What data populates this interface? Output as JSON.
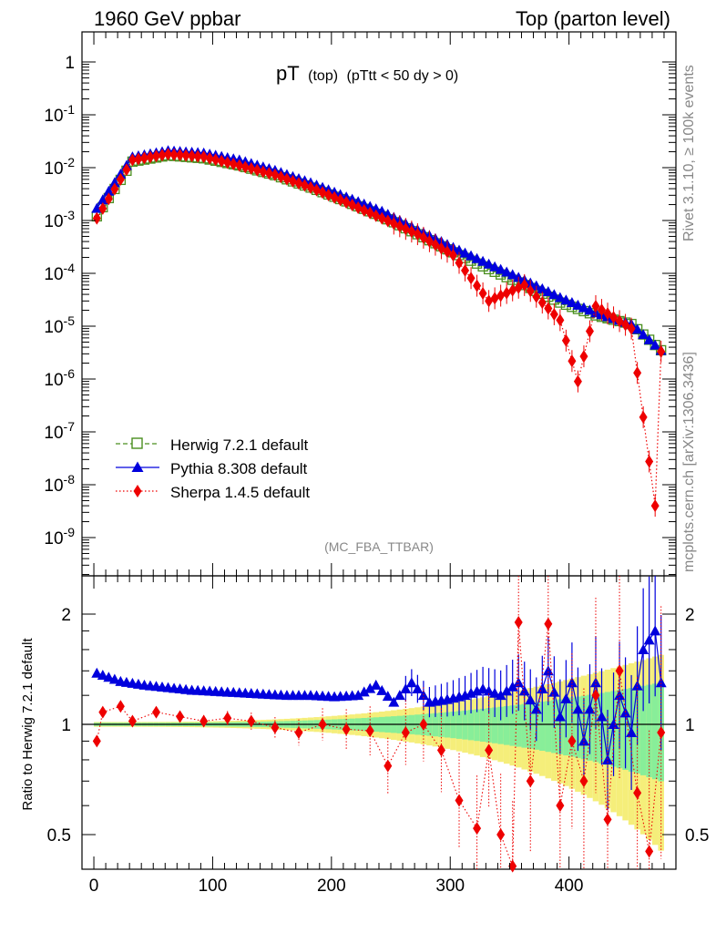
{
  "header": {
    "left": "1960 GeV ppbar",
    "right": "Top (parton level)"
  },
  "title": {
    "main": "pT",
    "sub1": "(top)",
    "sub2": "(pTtt < 50 dy > 0)"
  },
  "side_right_top": "Rivet 3.1.10, ≥ 100k events",
  "side_right_bottom": "mcplots.cern.ch [arXiv:1306.3436]",
  "analysis_label": "(MC_FBA_TTBAR)",
  "ratio_ylabel": "Ratio to Herwig 7.2.1 default",
  "colors": {
    "herwig": "#4a8f1f",
    "pythia": "#0000dd",
    "sherpa": "#ee0000",
    "band_inner": "#88ee99",
    "band_outer": "#f5ee7a"
  },
  "chart_data": [
    {
      "type": "line",
      "title": "pT (top) (pTtt < 50 dy > 0)",
      "xlabel": "",
      "ylabel": "",
      "yscale": "log",
      "xlim": [
        -10,
        490
      ],
      "ylim": [
        3e-10,
        3
      ],
      "y_tick_labels": [
        "1",
        "10^-1",
        "10^-2",
        "10^-3",
        "10^-4",
        "10^-5",
        "10^-6",
        "10^-7",
        "10^-8",
        "10^-9"
      ],
      "x_tick_labels": [
        "0",
        "100",
        "200",
        "300",
        "400"
      ],
      "legend": [
        "Herwig 7.2.1 default",
        "Pythia 8.308 default",
        "Sherpa 1.4.5 default"
      ],
      "legend_position": "bottom-left",
      "series": [
        {
          "name": "Herwig 7.2.1 default",
          "marker": "open-square",
          "line": "dashed",
          "x": [
            2.5,
            32.5,
            62.5,
            92.5,
            122.5,
            152.5,
            182.5,
            212.5,
            242.5,
            272.5,
            302.5,
            332.5,
            362.5,
            392.5,
            422.5,
            452.5,
            477.5
          ],
          "y": [
            0.0012,
            0.013,
            0.017,
            0.015,
            0.011,
            0.0072,
            0.0042,
            0.0023,
            0.0012,
            0.00055,
            0.00025,
            0.00012,
            6e-05,
            2.8e-05,
            1.6e-05,
            1.1e-05,
            3.5e-06
          ]
        },
        {
          "name": "Pythia 8.308 default",
          "marker": "filled-triangle",
          "line": "solid",
          "x": [
            2.5,
            32.5,
            62.5,
            92.5,
            122.5,
            152.5,
            182.5,
            212.5,
            242.5,
            272.5,
            302.5,
            332.5,
            362.5,
            392.5,
            422.5,
            452.5,
            477.5
          ],
          "y": [
            0.0017,
            0.016,
            0.021,
            0.019,
            0.014,
            0.0089,
            0.0052,
            0.0028,
            0.0015,
            0.00067,
            0.00031,
            0.00015,
            7.5e-05,
            3.5e-05,
            1.8e-05,
            1.1e-05,
            3.5e-06
          ]
        },
        {
          "name": "Sherpa 1.4.5 default",
          "marker": "filled-diamond",
          "line": "dotted",
          "x": [
            2.5,
            32.5,
            62.5,
            92.5,
            122.5,
            152.5,
            182.5,
            212.5,
            242.5,
            272.5,
            302.5,
            332.5,
            362.5,
            392.5,
            407.5,
            422.5,
            452.5,
            472.5,
            477.5
          ],
          "y": [
            0.0011,
            0.014,
            0.018,
            0.016,
            0.011,
            0.0073,
            0.0042,
            0.0022,
            0.0011,
            0.00055,
            0.00022,
            3e-05,
            6e-05,
            1.3e-05,
            9e-07,
            2.4e-05,
            9e-06,
            4e-09,
            3.3e-06
          ]
        }
      ]
    },
    {
      "type": "line",
      "title": "",
      "xlabel": "",
      "ylabel": "Ratio to Herwig 7.2.1 default",
      "yscale": "log",
      "xlim": [
        -10,
        490
      ],
      "ylim": [
        0.4,
        2.5
      ],
      "y_tick_labels": [
        "0.5",
        "1",
        "2"
      ],
      "x_tick_labels": [
        "0",
        "100",
        "200",
        "300",
        "400"
      ],
      "series": [
        {
          "name": "Herwig 7.2.1 default",
          "x": [
            -10,
            490
          ],
          "y": [
            1,
            1
          ]
        },
        {
          "name": "Pythia 8.308 default",
          "x": [
            2.5,
            22.5,
            42.5,
            62.5,
            82.5,
            102.5,
            122.5,
            142.5,
            162.5,
            182.5,
            202.5,
            222.5,
            237.5,
            252.5,
            267.5,
            282.5,
            297.5,
            312.5,
            327.5,
            342.5,
            357.5,
            372.5,
            382.5,
            392.5,
            402.5,
            412.5,
            422.5,
            432.5,
            442.5,
            452.5,
            462.5,
            472.5,
            477.5
          ],
          "y": [
            1.38,
            1.31,
            1.28,
            1.26,
            1.24,
            1.23,
            1.22,
            1.21,
            1.2,
            1.2,
            1.19,
            1.2,
            1.28,
            1.15,
            1.3,
            1.15,
            1.17,
            1.2,
            1.25,
            1.2,
            1.3,
            1.1,
            1.4,
            1.05,
            1.3,
            0.9,
            1.3,
            0.8,
            1.2,
            0.95,
            1.6,
            1.8,
            1.3
          ]
        },
        {
          "name": "Sherpa 1.4.5 default",
          "x": [
            2.5,
            7.5,
            22.5,
            32.5,
            52.5,
            72.5,
            92.5,
            112.5,
            132.5,
            152.5,
            172.5,
            192.5,
            212.5,
            232.5,
            247.5,
            262.5,
            277.5,
            292.5,
            307.5,
            322.5,
            332.5,
            342.5,
            352.5,
            357.5,
            367.5,
            382.5,
            392.5,
            402.5,
            412.5,
            422.5,
            432.5,
            442.5,
            457.5,
            467.5,
            477.5
          ],
          "y": [
            0.9,
            1.08,
            1.12,
            1.02,
            1.08,
            1.05,
            1.02,
            1.04,
            1.02,
            0.98,
            0.95,
            1.0,
            0.97,
            0.96,
            0.77,
            0.95,
            1.0,
            0.85,
            0.62,
            0.52,
            0.85,
            0.5,
            0.41,
            1.9,
            0.7,
            1.88,
            0.6,
            0.9,
            0.7,
            1.2,
            0.55,
            1.4,
            0.65,
            0.45,
            0.95
          ]
        }
      ]
    }
  ]
}
